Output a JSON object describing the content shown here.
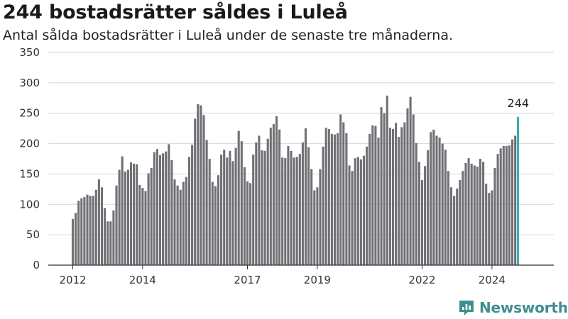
{
  "title": "244 bostadsrätter såldes i Luleå",
  "subtitle": "Antal sålda bostadsrätter i Luleå under de senaste tre månaderna.",
  "brand": {
    "name": "Newsworthy",
    "icon": "newsworthy-logo-icon",
    "color": "#3f8f8e"
  },
  "chart_data": {
    "type": "bar",
    "title": "244 bostadsrätter såldes i Luleå",
    "subtitle": "Antal sålda bostadsrätter i Luleå under de senaste tre månaderna.",
    "ylim": [
      0,
      350
    ],
    "yticks": [
      0,
      50,
      100,
      150,
      200,
      250,
      300,
      350
    ],
    "xticks": [
      {
        "label": "2012",
        "index": 0
      },
      {
        "label": "2014",
        "index": 24
      },
      {
        "label": "2017",
        "index": 60
      },
      {
        "label": "2019",
        "index": 84
      },
      {
        "label": "2022",
        "index": 120
      },
      {
        "label": "2024",
        "index": 144
      }
    ],
    "bar_color": "#707076",
    "highlight_color": "#17a2a0",
    "highlight_label": "244",
    "grid": true,
    "values": [
      76,
      86,
      106,
      110,
      112,
      116,
      114,
      114,
      124,
      141,
      128,
      94,
      72,
      72,
      90,
      131,
      157,
      179,
      154,
      157,
      169,
      167,
      166,
      132,
      127,
      122,
      151,
      160,
      186,
      191,
      181,
      184,
      187,
      199,
      173,
      141,
      131,
      124,
      137,
      145,
      178,
      198,
      241,
      265,
      263,
      247,
      206,
      175,
      137,
      130,
      148,
      182,
      190,
      177,
      188,
      171,
      193,
      221,
      204,
      161,
      138,
      135,
      182,
      202,
      213,
      189,
      188,
      208,
      226,
      232,
      245,
      223,
      177,
      176,
      196,
      188,
      177,
      178,
      183,
      202,
      225,
      194,
      158,
      123,
      128,
      158,
      195,
      226,
      224,
      216,
      215,
      217,
      248,
      235,
      217,
      164,
      155,
      176,
      178,
      174,
      180,
      195,
      216,
      230,
      229,
      210,
      260,
      250,
      279,
      226,
      224,
      234,
      211,
      227,
      235,
      258,
      277,
      248,
      201,
      170,
      140,
      163,
      189,
      219,
      223,
      213,
      210,
      200,
      190,
      155,
      128,
      114,
      126,
      140,
      155,
      168,
      176,
      167,
      164,
      162,
      175,
      170,
      134,
      119,
      123,
      160,
      183,
      192,
      196,
      196,
      197,
      207,
      213,
      244
    ]
  }
}
